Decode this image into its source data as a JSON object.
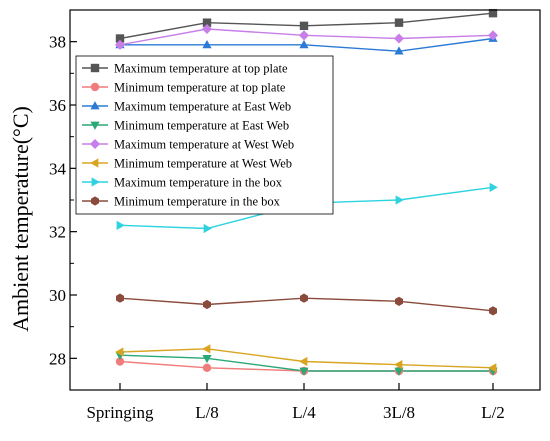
{
  "chart_data": {
    "type": "line",
    "title": "",
    "xlabel": "",
    "ylabel": "Ambient temperature(°C)",
    "categories": [
      "Springing",
      "L/8",
      "L/4",
      "3L/8",
      "L/2"
    ],
    "ylim": [
      27.0,
      39.0
    ],
    "yticks": [
      28,
      30,
      32,
      34,
      36,
      38
    ],
    "grid": false,
    "legend_position": "top-left",
    "series": [
      {
        "name": "Maximum temperature at top plate",
        "color": "#555555",
        "marker": "square",
        "values": [
          38.1,
          38.6,
          38.5,
          38.6,
          38.9
        ]
      },
      {
        "name": "Minimum temperature at top plate",
        "color": "#f07c7c",
        "marker": "circle",
        "values": [
          27.9,
          27.7,
          27.6,
          27.6,
          27.6
        ]
      },
      {
        "name": "Maximum temperature at East Web",
        "color": "#2b7bd6",
        "marker": "triangle-up",
        "values": [
          37.9,
          37.9,
          37.9,
          37.7,
          38.1
        ]
      },
      {
        "name": "Minimum temperature at East Web",
        "color": "#2aa876",
        "marker": "triangle-down",
        "values": [
          28.1,
          28.0,
          27.6,
          27.6,
          27.6
        ]
      },
      {
        "name": "Maximum temperature at West Web",
        "color": "#c77ee8",
        "marker": "diamond",
        "values": [
          37.9,
          38.4,
          38.2,
          38.1,
          38.2
        ]
      },
      {
        "name": "Minimum temperature at West Web",
        "color": "#d9a520",
        "marker": "triangle-left",
        "values": [
          28.2,
          28.3,
          27.9,
          27.8,
          27.7
        ]
      },
      {
        "name": "Maximum temperature in the box",
        "color": "#2ed3e0",
        "marker": "triangle-right",
        "values": [
          32.2,
          32.1,
          32.9,
          33.0,
          33.4
        ]
      },
      {
        "name": "Minimum temperature in the box",
        "color": "#8a4b3c",
        "marker": "hexagon",
        "values": [
          29.9,
          29.7,
          29.9,
          29.8,
          29.5
        ]
      }
    ]
  }
}
